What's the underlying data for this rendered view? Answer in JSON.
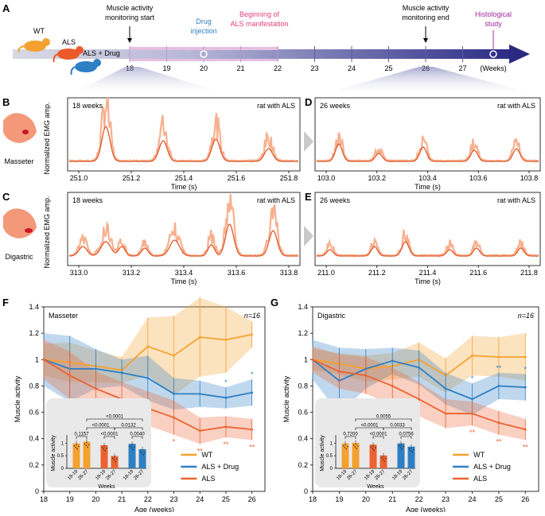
{
  "colors": {
    "wt": "#f4a12f",
    "drug": "#2e7fc4",
    "als": "#ec6331",
    "emg_raw": "#f7b08f",
    "emg_env": "#e0592b",
    "timeline_dark": "#2a2a80",
    "timeline_light": "#d7d7df",
    "pink": "#e6bfe0",
    "drug_text": "#2e7fc4",
    "als_text": "#e23e7a",
    "hist_text": "#a0299b"
  },
  "panels": {
    "A": "A",
    "B": "B",
    "C": "C",
    "D": "D",
    "E": "E",
    "F": "F",
    "G": "G"
  },
  "timeline": {
    "groups": [
      "WT",
      "ALS",
      "ALS + Drug"
    ],
    "weeks": [
      "18",
      "19",
      "20",
      "21",
      "22",
      "23",
      "24",
      "25",
      "26",
      "27",
      "(Weeks)"
    ],
    "start_label": [
      "Muscle activity",
      "monitoring start"
    ],
    "drug_label": [
      "Drug",
      "injection"
    ],
    "als_label": [
      "Beginning of",
      "ALS manifestation"
    ],
    "end_label": [
      "Muscle activity",
      "monitoring end"
    ],
    "hist_label": [
      "Histological",
      "study"
    ]
  },
  "muscles": {
    "masseter": "Masseter",
    "digastric": "Digastric"
  },
  "emg": {
    "ylabel": "Normalized EMG amp.",
    "xlabel": "Time (s)",
    "tag": "rat with ALS",
    "B": {
      "weeks": "18 weeks",
      "ticks": [
        "251.0",
        "251.2",
        "251.4",
        "251.6",
        "251.8"
      ]
    },
    "D": {
      "weeks": "26 weeks",
      "ticks": [
        "103.0",
        "103.2",
        "103.4",
        "103.6",
        "103.8"
      ]
    },
    "C": {
      "weeks": "18 weeks",
      "ticks": [
        "313.0",
        "313.2",
        "313.4",
        "313.6",
        "313.8"
      ]
    },
    "E": {
      "weeks": "26 weeks",
      "ticks": [
        "211.0",
        "211.2",
        "211.4",
        "211.6",
        "211.8"
      ]
    }
  },
  "chart_data": [
    {
      "type": "line",
      "panel": "F",
      "title": "Masseter",
      "annotation": "n=16",
      "xlabel": "Age (weeks)",
      "ylabel": "Muscle activity",
      "ylim": [
        0,
        1.4
      ],
      "xlim": [
        18,
        26.5
      ],
      "x": [
        18,
        19,
        20,
        21,
        22,
        23,
        24,
        25,
        26
      ],
      "yticks": [
        "0",
        "0.2",
        "0.4",
        "0.6",
        "0.8",
        "1",
        "1.2",
        "1.4"
      ],
      "series": [
        {
          "name": "WT",
          "color": "#f4a12f",
          "values": [
            1.0,
            0.98,
            0.95,
            0.92,
            1.1,
            1.03,
            1.17,
            1.15,
            1.19
          ],
          "err": [
            0.12,
            0.15,
            0.12,
            0.1,
            0.22,
            0.3,
            0.3,
            0.25,
            0.1
          ]
        },
        {
          "name": "ALS + Drug",
          "color": "#2e7fc4",
          "values": [
            1.0,
            0.93,
            0.93,
            0.9,
            0.86,
            0.74,
            0.74,
            0.71,
            0.75
          ],
          "err": [
            0.2,
            0.25,
            0.15,
            0.1,
            0.17,
            0.12,
            0.1,
            0.08,
            0.1
          ]
        },
        {
          "name": "ALS",
          "color": "#ec6331",
          "values": [
            1.0,
            0.88,
            0.78,
            0.7,
            0.63,
            0.56,
            0.46,
            0.49,
            0.47
          ],
          "err": [
            0.15,
            0.18,
            0.13,
            0.13,
            0.13,
            0.13,
            0.1,
            0.08,
            0.08
          ]
        }
      ],
      "sig": [
        {
          "x": 23,
          "mark": "*",
          "color": "#ec6331"
        },
        {
          "x": 24,
          "mark": "**",
          "color": "#ec6331"
        },
        {
          "x": 25,
          "mark": "**",
          "color": "#ec6331"
        },
        {
          "x": 26,
          "mark": "**",
          "color": "#ec6331"
        },
        {
          "x": 25,
          "mark": "*",
          "color": "#2e7fc4"
        },
        {
          "x": 26,
          "mark": "*",
          "color": "#2e7fc4"
        }
      ],
      "inset": {
        "ylabel": "Muscle activity",
        "xlabel": "Weeks",
        "groups": [
          "18-19",
          "26-27"
        ],
        "bars": [
          {
            "group": "WT",
            "values": [
              0.99,
              1.06
            ]
          },
          {
            "group": "ALS",
            "values": [
              0.92,
              0.49
            ]
          },
          {
            "group": "ALS + Drug",
            "values": [
              0.97,
              0.76
            ]
          }
        ],
        "pvalues": {
          "p1": "0.1157",
          "p2": "<0.0001",
          "p3": "<0.0001",
          "p4": "0.0132",
          "p5": "<0.0001",
          "p6": "0.0040"
        }
      }
    },
    {
      "type": "line",
      "panel": "G",
      "title": "Digastric",
      "annotation": "n=16",
      "xlabel": "Age (weeks)",
      "ylabel": "Muscle activity",
      "ylim": [
        0,
        1.4
      ],
      "xlim": [
        18,
        26.5
      ],
      "x": [
        18,
        19,
        20,
        21,
        22,
        23,
        24,
        25,
        26
      ],
      "yticks": [
        "0",
        "0.2",
        "0.4",
        "0.6",
        "0.8",
        "1",
        "1.2",
        "1.4"
      ],
      "series": [
        {
          "name": "WT",
          "color": "#f4a12f",
          "values": [
            1.0,
            0.97,
            0.93,
            0.95,
            1.0,
            0.88,
            1.03,
            1.02,
            1.02
          ],
          "err": [
            0.08,
            0.08,
            0.1,
            0.1,
            0.13,
            0.13,
            0.15,
            0.15,
            0.18
          ]
        },
        {
          "name": "ALS + Drug",
          "color": "#2e7fc4",
          "values": [
            1.0,
            0.84,
            0.93,
            0.99,
            0.94,
            0.78,
            0.7,
            0.8,
            0.79
          ],
          "err": [
            0.15,
            0.25,
            0.15,
            0.1,
            0.13,
            0.12,
            0.12,
            0.1,
            0.1
          ]
        },
        {
          "name": "ALS",
          "color": "#ec6331",
          "values": [
            1.0,
            0.91,
            0.88,
            0.8,
            0.7,
            0.59,
            0.59,
            0.52,
            0.47
          ],
          "err": [
            0.1,
            0.13,
            0.14,
            0.14,
            0.13,
            0.11,
            0.09,
            0.09,
            0.08
          ]
        }
      ],
      "sig": [
        {
          "x": 24,
          "mark": "**",
          "color": "#ec6331"
        },
        {
          "x": 25,
          "mark": "**",
          "color": "#ec6331"
        },
        {
          "x": 26,
          "mark": "**",
          "color": "#ec6331"
        },
        {
          "x": 24,
          "mark": "*",
          "color": "#2e7fc4"
        },
        {
          "x": 25,
          "mark": "**",
          "color": "#2e7fc4"
        },
        {
          "x": 26,
          "mark": "*",
          "color": "#2e7fc4"
        }
      ],
      "inset": {
        "ylabel": "Muscle activity",
        "xlabel": "Weeks",
        "groups": [
          "18-19",
          "26-27"
        ],
        "bars": [
          {
            "group": "WT",
            "values": [
              0.99,
              1.01
            ]
          },
          {
            "group": "ALS",
            "values": [
              0.94,
              0.51
            ]
          },
          {
            "group": "ALS + Drug",
            "values": [
              0.99,
              0.86
            ]
          }
        ],
        "pvalues": {
          "p1": "0.7200",
          "p2": "<0.0001",
          "p3": "<0.0001",
          "p4": "0.0033",
          "p5": "0.0055",
          "p6": "0.0756"
        }
      }
    }
  ]
}
